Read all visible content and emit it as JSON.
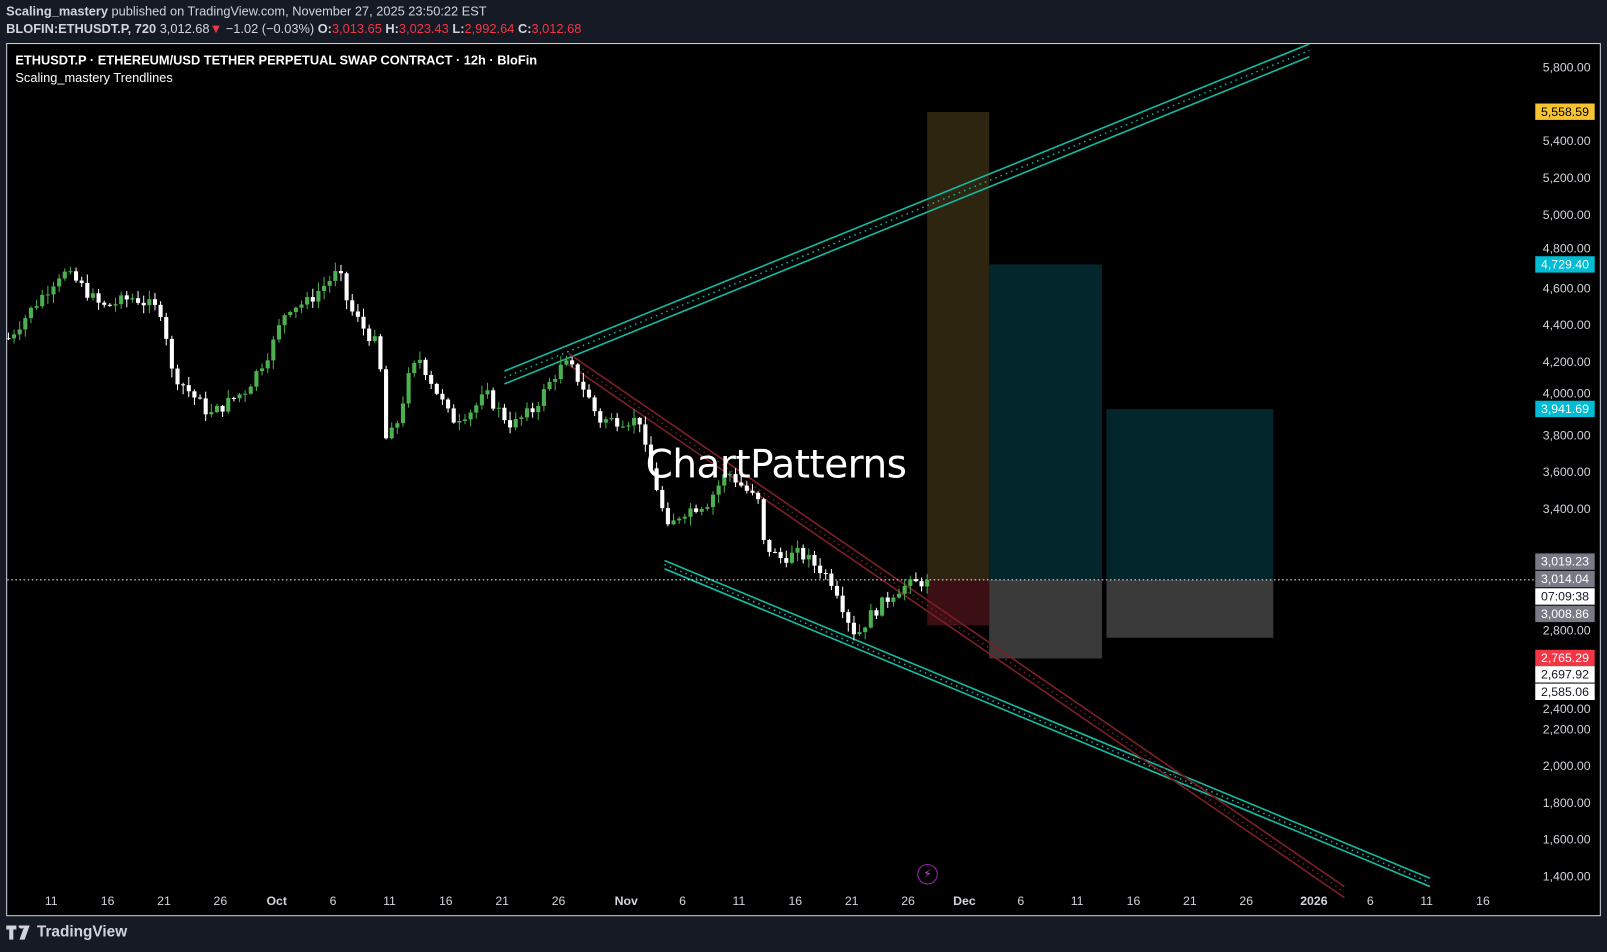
{
  "header": {
    "author": "Scaling_mastery",
    "published_text": "published on TradingView.com, November 27, 2025 23:50:22 EST",
    "symbol_interval": "BLOFIN:ETHUSDT.P, 720",
    "last_price": "3,012.68",
    "change": "−1.02 (−0.03%)",
    "o_label": "O:",
    "o": "3,013.65",
    "h_label": "H:",
    "h": "3,023.43",
    "l_label": "L:",
    "l": "2,992.64",
    "c_label": "C:",
    "c": "3,012.68"
  },
  "legend": {
    "title": "ETHUSDT.P · ETHEREUM/USD TETHER PERPETUAL SWAP CONTRACT · 12h · BloFin",
    "indicator": "Scaling_mastery Trendlines"
  },
  "watermark": "ChartPatterns",
  "footer": {
    "brand": "TradingView"
  },
  "colors": {
    "up": "#4caf50",
    "down": "#ffffff",
    "channel_green": "#14b8a0",
    "channel_red": "#7a1f25",
    "badge_yellow": "#f7c331",
    "badge_teal": "#00bcd4",
    "badge_red": "#f23645",
    "badge_grey": "#787b86"
  },
  "chart_data": {
    "type": "candlestick",
    "title": "ETHUSDT.P 12h",
    "x_axis_origin": "2025-09-11",
    "x_ticks": [
      {
        "d": 0,
        "label": "11"
      },
      {
        "d": 5,
        "label": "16"
      },
      {
        "d": 10,
        "label": "21"
      },
      {
        "d": 15,
        "label": "26"
      },
      {
        "d": 20,
        "label": "Oct"
      },
      {
        "d": 25,
        "label": "6"
      },
      {
        "d": 30,
        "label": "11"
      },
      {
        "d": 35,
        "label": "16"
      },
      {
        "d": 40,
        "label": "21"
      },
      {
        "d": 45,
        "label": "26"
      },
      {
        "d": 51,
        "label": "Nov"
      },
      {
        "d": 56,
        "label": "6"
      },
      {
        "d": 61,
        "label": "11"
      },
      {
        "d": 66,
        "label": "16"
      },
      {
        "d": 71,
        "label": "21"
      },
      {
        "d": 76,
        "label": "26"
      },
      {
        "d": 81,
        "label": "Dec"
      },
      {
        "d": 86,
        "label": "6"
      },
      {
        "d": 91,
        "label": "11"
      },
      {
        "d": 96,
        "label": "16"
      },
      {
        "d": 101,
        "label": "21"
      },
      {
        "d": 106,
        "label": "26"
      },
      {
        "d": 112,
        "label": "2026"
      },
      {
        "d": 117,
        "label": "6"
      },
      {
        "d": 122,
        "label": "11"
      },
      {
        "d": 127,
        "label": "16"
      }
    ],
    "y_ticks": [
      "5,800.00",
      "5,400.00",
      "5,200.00",
      "5,000.00",
      "4,800.00",
      "4,600.00",
      "4,400.00",
      "4,200.00",
      "4,000.00",
      "3,800.00",
      "3,600.00",
      "3,400.00",
      "2,800.00",
      "2,400.00",
      "2,200.00",
      "2,000.00",
      "1,800.00",
      "1,600.00",
      "1,400.00"
    ],
    "y_tick_values": [
      5800,
      5400,
      5200,
      5000,
      4800,
      4600,
      4400,
      4200,
      4000,
      3800,
      3600,
      3400,
      2800,
      2400,
      2200,
      2000,
      1800,
      1600,
      1400
    ],
    "ylim": [
      1300,
      5930
    ],
    "price_path": [
      [
        -3.8,
        4328
      ],
      [
        0.9,
        4690
      ],
      [
        2.3,
        4634
      ],
      [
        4.5,
        4495
      ],
      [
        7.3,
        4551
      ],
      [
        10,
        4467
      ],
      [
        10.5,
        4160
      ],
      [
        14.1,
        3910
      ],
      [
        17.3,
        4049
      ],
      [
        19.5,
        4272
      ],
      [
        20.9,
        4495
      ],
      [
        22.7,
        4523
      ],
      [
        24.5,
        4634
      ],
      [
        25.5,
        4690
      ],
      [
        26.4,
        4495
      ],
      [
        27.7,
        4384
      ],
      [
        29.1,
        4272
      ],
      [
        29.5,
        3770
      ],
      [
        30.5,
        3826
      ],
      [
        31.8,
        4133
      ],
      [
        32.7,
        4216
      ],
      [
        34.1,
        4049
      ],
      [
        35.5,
        3882
      ],
      [
        37.3,
        3937
      ],
      [
        38.6,
        4021
      ],
      [
        40,
        3910
      ],
      [
        40.9,
        3854
      ],
      [
        42.7,
        3937
      ],
      [
        45,
        4160
      ],
      [
        45.9,
        4188
      ],
      [
        47.3,
        4049
      ],
      [
        48.6,
        3882
      ],
      [
        50,
        3882
      ],
      [
        52.3,
        3882
      ],
      [
        52.7,
        3714
      ],
      [
        54.1,
        3436
      ],
      [
        54.5,
        3268
      ],
      [
        55.9,
        3380
      ],
      [
        58.2,
        3436
      ],
      [
        60,
        3603
      ],
      [
        60.9,
        3547
      ],
      [
        62.7,
        3436
      ],
      [
        63.2,
        3212
      ],
      [
        64.5,
        3129
      ],
      [
        66.4,
        3157
      ],
      [
        68.2,
        3073
      ],
      [
        69.5,
        2989
      ],
      [
        70.5,
        2822
      ],
      [
        71.4,
        2710
      ],
      [
        72.7,
        2822
      ],
      [
        74.1,
        2906
      ],
      [
        75,
        2962
      ],
      [
        76.4,
        2989
      ],
      [
        77.7,
        3012
      ]
    ],
    "current_price": 3012.68,
    "trendlines": [
      {
        "name": "ascending-channel-upper",
        "color": "green",
        "from": [
          40.2,
          4149
        ],
        "to": [
          111.6,
          5929
        ],
        "offset": -70
      },
      {
        "name": "descending-channel-lower",
        "color": "green",
        "from": [
          54.4,
          3073
        ],
        "to": [
          122.3,
          1344
        ],
        "offset": 45
      },
      {
        "name": "descending-resistance",
        "color": "red",
        "from": [
          45.9,
          4244
        ],
        "to": [
          114.7,
          1344
        ],
        "offset": -60
      }
    ],
    "boxes": [
      {
        "name": "target-box-1",
        "from_d": 77.7,
        "to_d": 83.2,
        "top": 5558.59,
        "entry": 3012,
        "bottom": 2765.29,
        "profit_color": "#2d2510",
        "loss_color": "#3b0f14"
      },
      {
        "name": "target-box-2",
        "from_d": 83.2,
        "to_d": 93.2,
        "top": 4729.4,
        "entry": 3012,
        "bottom": 2585.06,
        "profit_color": "#02262b",
        "loss_color": "#3a3a3a"
      },
      {
        "name": "target-box-3",
        "from_d": 93.6,
        "to_d": 108.4,
        "top": 3941.69,
        "entry": 3012,
        "bottom": 2697.92,
        "profit_color": "#02262b",
        "loss_color": "#3a3a3a"
      }
    ]
  },
  "price_badges": [
    {
      "label": "5,558.59",
      "value": 5558.59,
      "bg": "#f7c331",
      "fg": "#000000"
    },
    {
      "label": "4,729.40",
      "value": 4729.4,
      "bg": "#00bcd4",
      "fg": "#ffffff"
    },
    {
      "label": "3,941.69",
      "value": 3941.69,
      "bg": "#00bcd4",
      "fg": "#ffffff"
    },
    {
      "label": "3,019.23",
      "value": 3110,
      "bg": "#787b86",
      "fg": "#ffffff"
    },
    {
      "label": "3,014.04",
      "value": 3016,
      "bg": "#787b86",
      "fg": "#ffffff"
    },
    {
      "label": "07:09:38",
      "value": 2922,
      "bg": "#ffffff",
      "fg": "#131722"
    },
    {
      "label": "3,008.86",
      "value": 2828,
      "bg": "#787b86",
      "fg": "#ffffff"
    },
    {
      "label": "2,765.29",
      "value": 2590,
      "bg": "#f23645",
      "fg": "#ffffff"
    },
    {
      "label": "2,697.92",
      "value": 2497,
      "bg": "#ffffff",
      "fg": "#131722"
    },
    {
      "label": "2,585.06",
      "value": 2404,
      "bg": "#ffffff",
      "fg": "#131722"
    }
  ]
}
